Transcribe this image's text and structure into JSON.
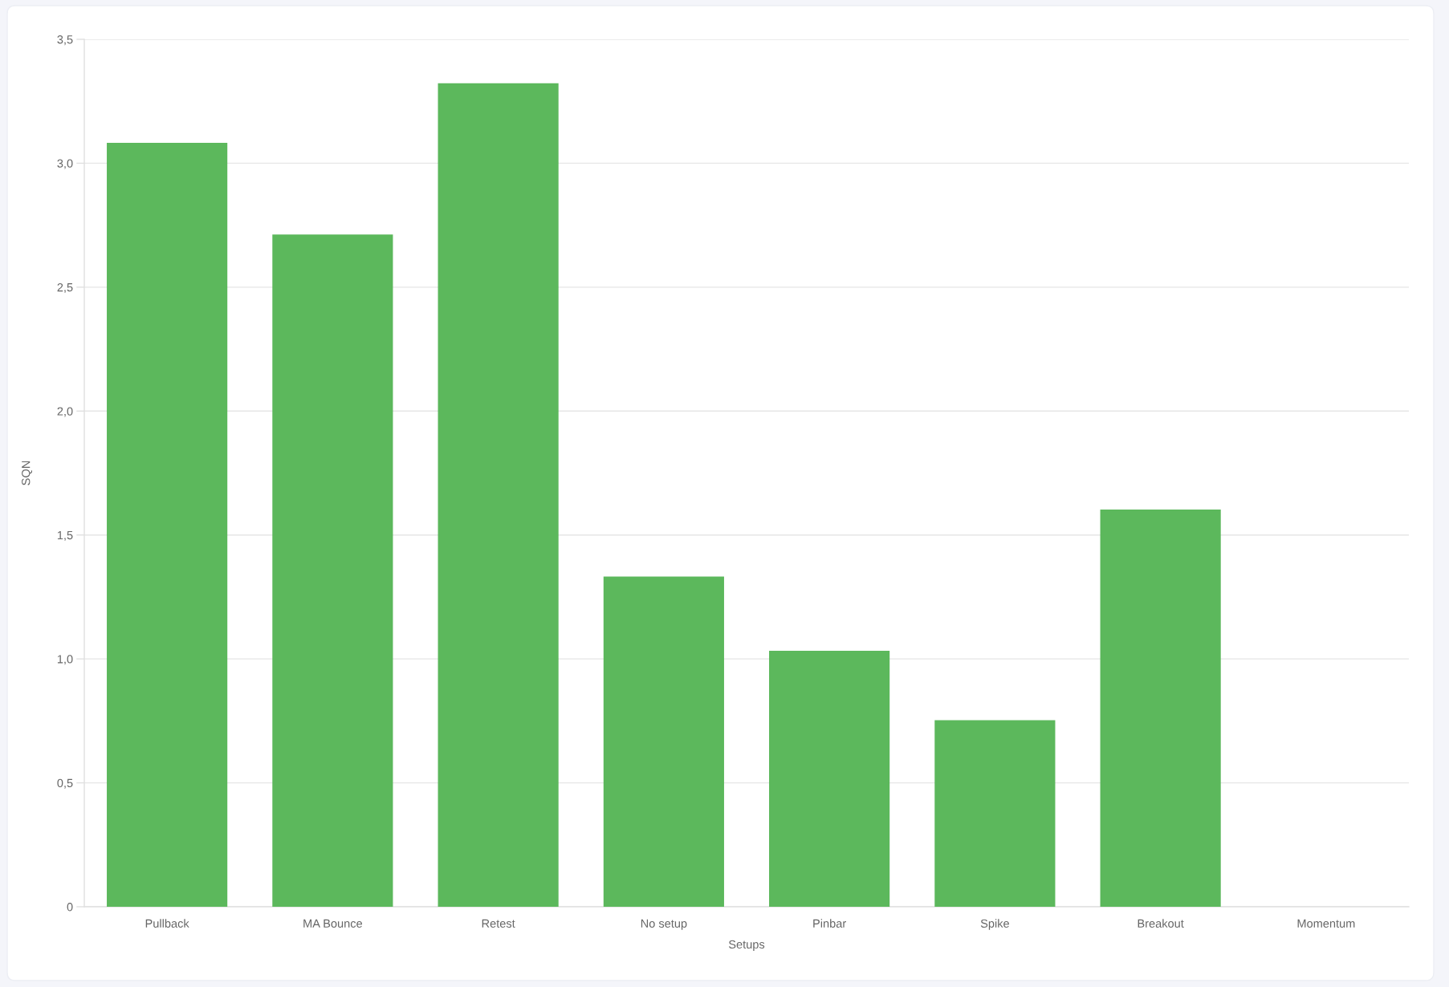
{
  "chart_data": {
    "type": "bar",
    "xlabel": "Setups",
    "ylabel": "SQN",
    "categories": [
      "Pullback",
      "MA Bounce",
      "Retest",
      "No setup",
      "Pinbar",
      "Spike",
      "Breakout",
      "Momentum"
    ],
    "values": [
      3.08,
      2.71,
      3.32,
      1.33,
      1.03,
      0.75,
      1.6,
      null
    ],
    "color": "#5cb85c",
    "ylim": [
      0,
      3.5
    ],
    "yticks": [
      0,
      {
        "value": 0.5,
        "label": "0,5"
      },
      {
        "value": 1.0,
        "label": "1,0"
      },
      {
        "value": 1.5,
        "label": "1,5"
      },
      {
        "value": 2.0,
        "label": "2,0"
      },
      {
        "value": 2.5,
        "label": "2,5"
      },
      {
        "value": 3.0,
        "label": "3,0"
      },
      {
        "value": 3.5,
        "label": "3,5"
      }
    ],
    "grid": "y"
  }
}
